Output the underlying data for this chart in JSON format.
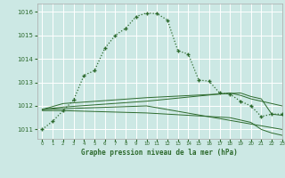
{
  "title": "Graphe pression niveau de la mer (hPa)",
  "bg_color": "#cce8e4",
  "grid_color": "#ffffff",
  "line_color": "#2d6a2d",
  "xlim": [
    -0.5,
    23
  ],
  "ylim": [
    1010.6,
    1016.35
  ],
  "yticks": [
    1011,
    1012,
    1013,
    1014,
    1015,
    1016
  ],
  "xticks": [
    0,
    1,
    2,
    3,
    4,
    5,
    6,
    7,
    8,
    9,
    10,
    11,
    12,
    13,
    14,
    15,
    16,
    17,
    18,
    19,
    20,
    21,
    22,
    23
  ],
  "line1_x": [
    0,
    1,
    2,
    3,
    4,
    5,
    6,
    7,
    8,
    9,
    10,
    11,
    12,
    13,
    14,
    15,
    16,
    17,
    18,
    19,
    20,
    21,
    22,
    23
  ],
  "line1_y": [
    1011.0,
    1011.35,
    1011.8,
    1012.25,
    1013.3,
    1013.5,
    1014.45,
    1015.0,
    1015.3,
    1015.8,
    1015.95,
    1015.92,
    1015.65,
    1014.35,
    1014.2,
    1013.1,
    1013.05,
    1012.55,
    1012.5,
    1012.2,
    1012.0,
    1011.55,
    1011.65,
    1011.65
  ],
  "line2_x": [
    0,
    2,
    10,
    19,
    20,
    21,
    22,
    23
  ],
  "line2_y": [
    1011.85,
    1012.1,
    1012.35,
    1012.55,
    1012.4,
    1012.3,
    1011.65,
    1011.6
  ],
  "line3_x": [
    0,
    2,
    10,
    18,
    19,
    20,
    21,
    22,
    23
  ],
  "line3_y": [
    1011.85,
    1011.95,
    1012.2,
    1012.55,
    1012.45,
    1012.3,
    1012.2,
    1012.1,
    1012.0
  ],
  "line4_x": [
    0,
    2,
    10,
    18,
    19,
    20,
    21,
    22,
    23
  ],
  "line4_y": [
    1011.8,
    1011.8,
    1011.7,
    1011.5,
    1011.4,
    1011.3,
    1011.0,
    1010.85,
    1010.75
  ],
  "line5_x": [
    0,
    10,
    23
  ],
  "line5_y": [
    1011.85,
    1012.0,
    1011.0
  ]
}
